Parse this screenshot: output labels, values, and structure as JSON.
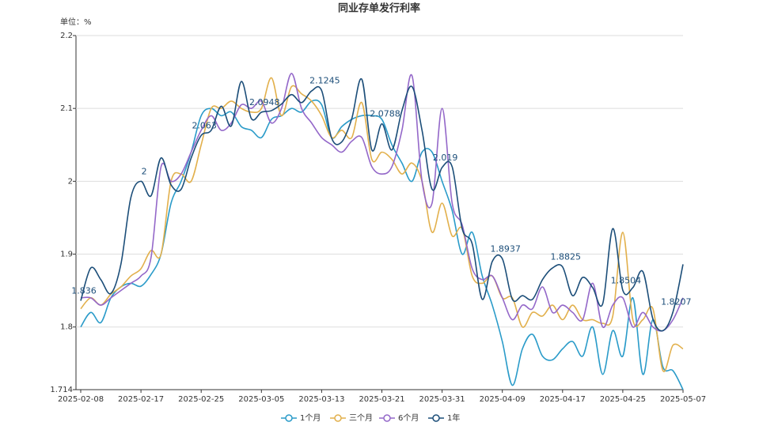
{
  "chart_data": {
    "type": "line",
    "title": "同业存单发行利率",
    "unit_label": "单位：%",
    "categories": [
      "2025-02-08",
      null,
      null,
      null,
      null,
      null,
      "2025-02-17",
      null,
      null,
      null,
      null,
      null,
      "2025-02-25",
      null,
      null,
      null,
      null,
      null,
      "2025-03-05",
      null,
      null,
      null,
      null,
      null,
      "2025-03-13",
      null,
      null,
      null,
      null,
      null,
      "2025-03-21",
      null,
      null,
      null,
      null,
      null,
      "2025-03-31",
      null,
      null,
      null,
      null,
      null,
      "2025-04-09",
      null,
      null,
      null,
      null,
      null,
      "2025-04-17",
      null,
      null,
      null,
      null,
      null,
      "2025-04-25",
      null,
      null,
      null,
      null,
      null,
      "2025-05-07"
    ],
    "ylim": [
      1.714,
      2.2
    ],
    "yticks": [
      1.714,
      1.8,
      1.9,
      2,
      2.1,
      2.2
    ],
    "grid": true,
    "series": [
      {
        "name": "1个月",
        "color": "#2a9bc9",
        "values": [
          1.8,
          1.82,
          1.806,
          1.84,
          1.855,
          1.86,
          1.856,
          1.872,
          1.9,
          1.97,
          2.0,
          2.04,
          2.09,
          2.1,
          2.09,
          2.095,
          2.075,
          2.07,
          2.06,
          2.085,
          2.09,
          2.1,
          2.095,
          2.11,
          2.105,
          2.06,
          2.075,
          2.085,
          2.09,
          2.09,
          2.085,
          2.05,
          2.025,
          2.0,
          2.04,
          2.04,
          2.0,
          1.96,
          1.9,
          1.93,
          1.87,
          1.83,
          1.78,
          1.72,
          1.77,
          1.79,
          1.76,
          1.755,
          1.77,
          1.78,
          1.76,
          1.8,
          1.735,
          1.795,
          1.76,
          1.84,
          1.735,
          1.81,
          1.745,
          1.74,
          1.714
        ]
      },
      {
        "name": "三个月",
        "color": "#e2b04c",
        "values": [
          1.825,
          1.84,
          1.83,
          1.845,
          1.855,
          1.87,
          1.88,
          1.905,
          1.9,
          2.0,
          2.01,
          2.0,
          2.05,
          2.1,
          2.1,
          2.11,
          2.1,
          2.095,
          2.1,
          2.142,
          2.09,
          2.13,
          2.12,
          2.11,
          2.09,
          2.06,
          2.07,
          2.06,
          2.108,
          2.03,
          2.04,
          2.03,
          2.01,
          2.025,
          2.0,
          1.93,
          1.97,
          1.925,
          1.935,
          1.87,
          1.86,
          1.87,
          1.84,
          1.84,
          1.8,
          1.82,
          1.815,
          1.83,
          1.81,
          1.83,
          1.81,
          1.81,
          1.805,
          1.815,
          1.93,
          1.81,
          1.81,
          1.825,
          1.74,
          1.775,
          1.77
        ]
      },
      {
        "name": "6个月",
        "color": "#9468c9",
        "values": [
          1.84,
          1.84,
          1.83,
          1.84,
          1.85,
          1.86,
          1.87,
          1.895,
          2.02,
          2.0,
          2.01,
          2.04,
          2.07,
          2.09,
          2.07,
          2.08,
          2.105,
          2.1,
          2.11,
          2.08,
          2.1,
          2.148,
          2.1,
          2.08,
          2.06,
          2.05,
          2.04,
          2.055,
          2.06,
          2.02,
          2.01,
          2.02,
          2.07,
          2.145,
          2.0,
          1.97,
          2.1,
          1.97,
          1.94,
          1.88,
          1.865,
          1.87,
          1.84,
          1.81,
          1.83,
          1.825,
          1.855,
          1.82,
          1.83,
          1.82,
          1.81,
          1.86,
          1.8,
          1.83,
          1.84,
          1.8,
          1.82,
          1.8,
          1.795,
          1.81,
          1.84
        ]
      },
      {
        "name": "1年",
        "color": "#1c4e79",
        "values": [
          1.836,
          1.881,
          1.865,
          1.846,
          1.886,
          1.978,
          2,
          1.98,
          2.032,
          1.995,
          1.989,
          2.032,
          2.063,
          2.07,
          2.103,
          2.076,
          2.137,
          2.086,
          2.0948,
          2.097,
          2.106,
          2.119,
          2.108,
          2.124,
          2.1245,
          2.059,
          2.054,
          2.086,
          2.14,
          2.043,
          2.0788,
          2.043,
          2.097,
          2.13,
          2.07,
          1.989,
          2.019,
          2.02,
          1.935,
          1.914,
          1.838,
          1.89,
          1.8937,
          1.838,
          1.843,
          1.838,
          1.865,
          1.881,
          1.8825,
          1.843,
          1.868,
          1.854,
          1.832,
          1.935,
          1.8504,
          1.854,
          1.876,
          1.811,
          1.795,
          1.8207,
          1.886
        ],
        "value_labels": [
          "1.836",
          null,
          null,
          null,
          null,
          null,
          "2",
          null,
          null,
          null,
          null,
          null,
          "2.063",
          null,
          null,
          null,
          null,
          null,
          "2.0948",
          null,
          null,
          null,
          null,
          null,
          "2.1245",
          null,
          null,
          null,
          null,
          null,
          "2.0788",
          null,
          null,
          null,
          null,
          null,
          "2.019",
          null,
          null,
          null,
          null,
          null,
          "1.8937",
          null,
          null,
          null,
          null,
          null,
          "1.8825",
          null,
          null,
          null,
          null,
          null,
          "1.8504",
          null,
          null,
          null,
          null,
          "1.8207",
          null
        ]
      }
    ]
  }
}
